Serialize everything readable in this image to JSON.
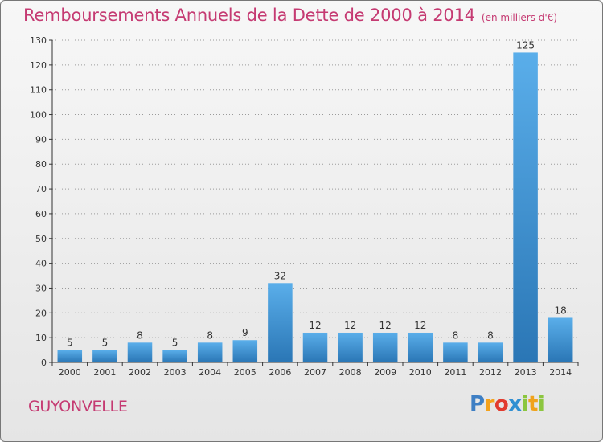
{
  "title": "Remboursements Annuels de la Dette de 2000 à 2014",
  "subtitle": "(en milliers d'€)",
  "commune": "GUYONVELLE",
  "logo": {
    "letters": [
      {
        "char": "P",
        "color": "#3e7fc4"
      },
      {
        "char": "r",
        "color": "#f4a21c"
      },
      {
        "char": "o",
        "color": "#e23b2e"
      },
      {
        "char": "x",
        "color": "#2f8fd2"
      },
      {
        "char": "i",
        "color": "#8cc63f"
      },
      {
        "char": "t",
        "color": "#f0a31c"
      },
      {
        "char": "i",
        "color": "#8cc63f"
      }
    ]
  },
  "colors": {
    "title": "#c53a72",
    "bar_top": "#5aaeea",
    "bar_bottom": "#2a76b5",
    "grid": "#9a9a9a"
  },
  "chart_data": {
    "type": "bar",
    "categories": [
      "2000",
      "2001",
      "2002",
      "2003",
      "2004",
      "2005",
      "2006",
      "2007",
      "2008",
      "2009",
      "2010",
      "2011",
      "2012",
      "2013",
      "2014"
    ],
    "values": [
      5,
      5,
      8,
      5,
      8,
      9,
      32,
      12,
      12,
      12,
      12,
      8,
      8,
      125,
      18
    ],
    "ylim": [
      0,
      130
    ],
    "yticks": [
      0,
      10,
      20,
      30,
      40,
      50,
      60,
      70,
      80,
      90,
      100,
      110,
      120,
      130
    ],
    "grid": true,
    "data_labels": true
  }
}
